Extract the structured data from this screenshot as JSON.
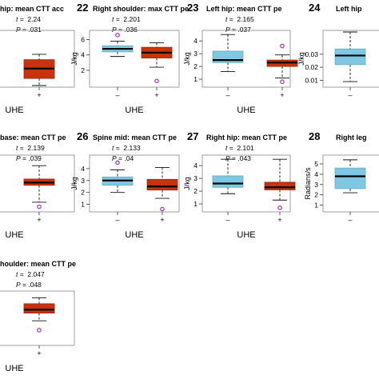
{
  "colors": {
    "low": "#7ec8e3",
    "high": "#c8330f",
    "outlier": "#9b30c9",
    "line": "#111111"
  },
  "chart_data": [
    {
      "type": "box",
      "panel": "",
      "title": "hip: mean CTT acc",
      "t": "2.24",
      "p": ".031",
      "xlabel": "UHE",
      "ylabel": "",
      "yticks": [],
      "ylim": [
        0,
        6
      ],
      "groups": [
        {
          "label": "",
          "stats": {
            "whislo": 1.5,
            "q1": 2.6,
            "med": 3.0,
            "q3": 3.5,
            "whishi": 3.9
          },
          "outliers": []
        },
        {
          "label": "+",
          "stats": {
            "whislo": 0.0,
            "q1": 0.8,
            "med": 1.9,
            "q3": 2.9,
            "whishi": 3.5
          },
          "outliers": []
        }
      ]
    },
    {
      "type": "box",
      "panel": "22",
      "title": "Right shoulder: max CTT pe",
      "t": "2.201",
      "p": ".036",
      "xlabel": "UHE",
      "ylabel": "J/kg",
      "yticks": [
        "2",
        "4",
        "6"
      ],
      "ylim": [
        0,
        7
      ],
      "groups": [
        {
          "label": "–",
          "stats": {
            "whislo": 3.8,
            "q1": 4.4,
            "med": 4.8,
            "q3": 5.2,
            "whishi": 5.8
          },
          "outliers": [
            6.6
          ]
        },
        {
          "label": "+",
          "stats": {
            "whislo": 2.4,
            "q1": 3.6,
            "med": 4.3,
            "q3": 5.0,
            "whishi": 5.6
          },
          "outliers": [
            0.6
          ]
        }
      ]
    },
    {
      "type": "box",
      "panel": "23",
      "title": "Left hip: mean CTT pe",
      "t": "2.165",
      "p": ".037",
      "xlabel": "UHE",
      "ylabel": "J/kg",
      "yticks": [
        "1",
        "2",
        "3",
        "4"
      ],
      "ylim": [
        0.5,
        4.7
      ],
      "groups": [
        {
          "label": "–",
          "stats": {
            "whislo": 1.6,
            "q1": 2.3,
            "med": 2.5,
            "q3": 3.2,
            "whishi": 4.5
          },
          "outliers": []
        },
        {
          "label": "+",
          "stats": {
            "whislo": 1.1,
            "q1": 2.0,
            "med": 2.3,
            "q3": 2.5,
            "whishi": 2.9
          },
          "outliers": [
            3.6,
            0.8
          ]
        }
      ]
    },
    {
      "type": "box",
      "panel": "24",
      "title": "Left hip",
      "t": "",
      "p": "",
      "xlabel": "",
      "ylabel": "J/kg",
      "yticks": [
        "0.01",
        "0.02",
        "0.03"
      ],
      "ylim": [
        0.006,
        0.047
      ],
      "groups": [
        {
          "label": "–",
          "stats": {
            "whislo": 0.009,
            "q1": 0.022,
            "med": 0.029,
            "q3": 0.034,
            "whishi": 0.047
          },
          "outliers": []
        }
      ]
    },
    {
      "type": "box",
      "panel": "",
      "title": "base: mean CTT pe",
      "t": "2.139",
      "p": ".039",
      "xlabel": "UHE",
      "ylabel": "",
      "yticks": [],
      "ylim": [
        0,
        6
      ],
      "groups": [
        {
          "label": "",
          "stats": {
            "whislo": 2.0,
            "q1": 3.3,
            "med": 3.9,
            "q3": 4.6,
            "whishi": 5.0
          },
          "outliers": []
        },
        {
          "label": "+",
          "stats": {
            "whislo": 0.9,
            "q1": 2.8,
            "med": 3.1,
            "q3": 3.5,
            "whishi": 5.0
          },
          "outliers": [
            0.4
          ]
        }
      ]
    },
    {
      "type": "box",
      "panel": "26",
      "title": "Spine mid: mean CTT pe",
      "t": "2.133",
      "p": ".04",
      "xlabel": "UHE",
      "ylabel": "J/kg",
      "yticks": [
        "1",
        "2",
        "3",
        "4"
      ],
      "ylim": [
        0.5,
        5.0
      ],
      "groups": [
        {
          "label": "–",
          "stats": {
            "whislo": 2.0,
            "q1": 2.6,
            "med": 3.0,
            "q3": 3.3,
            "whishi": 3.9
          },
          "outliers": [
            4.5
          ]
        },
        {
          "label": "+",
          "stats": {
            "whislo": 1.5,
            "q1": 2.2,
            "med": 2.5,
            "q3": 3.1,
            "whishi": 4.1
          },
          "outliers": [
            0.6
          ]
        }
      ]
    },
    {
      "type": "box",
      "panel": "27",
      "title": "Right hip: mean CTT pe",
      "t": "2.101",
      "p": ".043",
      "xlabel": "UHE",
      "ylabel": "J/kg",
      "yticks": [
        "1",
        "2",
        "3",
        "4"
      ],
      "ylim": [
        0.5,
        4.7
      ],
      "groups": [
        {
          "label": "–",
          "stats": {
            "whislo": 1.8,
            "q1": 2.3,
            "med": 2.6,
            "q3": 3.2,
            "whishi": 4.5
          },
          "outliers": []
        },
        {
          "label": "+",
          "stats": {
            "whislo": 1.3,
            "q1": 2.1,
            "med": 2.3,
            "q3": 2.7,
            "whishi": 4.5
          },
          "outliers": [
            0.7
          ]
        }
      ]
    },
    {
      "type": "box",
      "panel": "28",
      "title": "Right leg",
      "t": "",
      "p": "",
      "xlabel": "",
      "ylabel": "Radians/s",
      "yticks": [
        "1",
        "2",
        "3",
        "4",
        "5"
      ],
      "ylim": [
        0.5,
        5.7
      ],
      "groups": [
        {
          "label": "–",
          "stats": {
            "whislo": 2.2,
            "q1": 2.6,
            "med": 3.8,
            "q3": 4.6,
            "whishi": 5.4
          },
          "outliers": []
        }
      ]
    },
    {
      "type": "box",
      "panel": "",
      "title": "houlder: mean CTT pe",
      "t": "2.047",
      "p": ".048",
      "xlabel": "UHE",
      "ylabel": "",
      "yticks": [],
      "ylim": [
        0,
        6
      ],
      "groups": [
        {
          "label": "",
          "stats": {
            "whislo": 4.0,
            "q1": 4.7,
            "med": 4.9,
            "q3": 5.1,
            "whishi": 5.6
          },
          "outliers": []
        },
        {
          "label": "+",
          "stats": {
            "whislo": 2.7,
            "q1": 3.6,
            "med": 4.0,
            "q3": 4.7,
            "whishi": 5.4
          },
          "outliers": [
            1.6
          ]
        }
      ]
    }
  ]
}
